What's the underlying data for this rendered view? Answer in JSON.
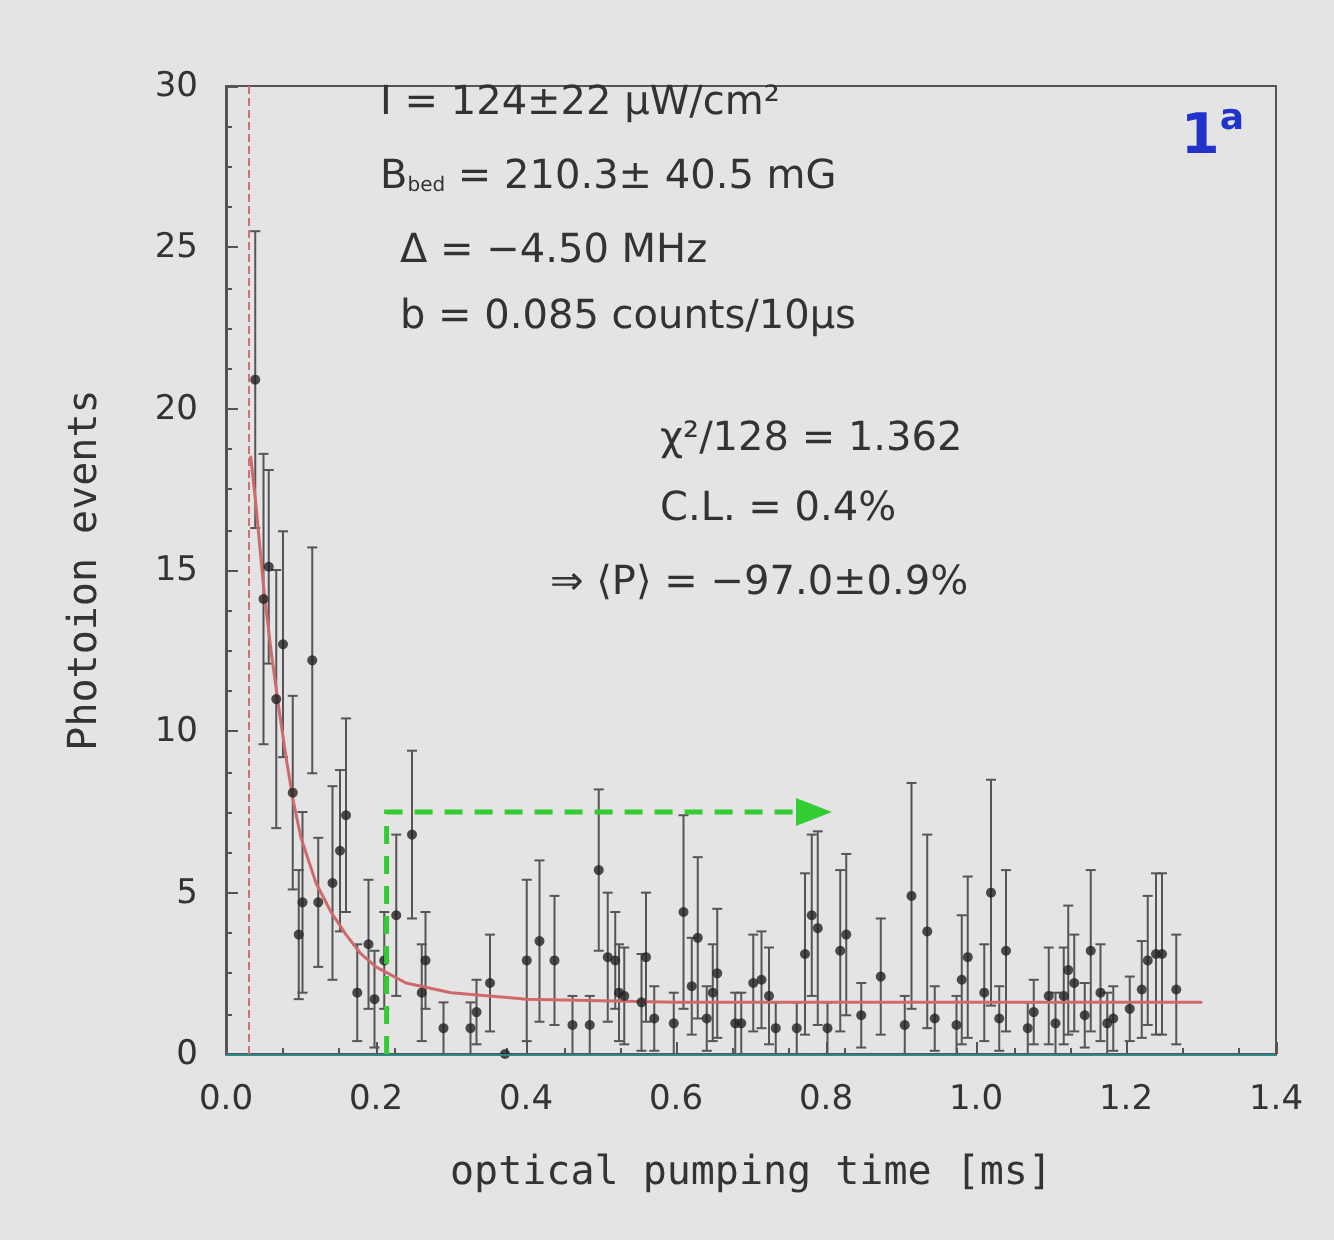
{
  "chart_data": {
    "type": "scatter",
    "title": "1$^{a}$",
    "xlabel": "optical pumping time [ms]",
    "ylabel": "Photoion events",
    "annotations": [
      "I = 124±22 μW/cm²",
      "B$_{bed}$ = 210.3± 40.5 mG",
      "Δ = −4.50 MHz",
      "b = 0.085 counts/10μs",
      "χ²/128 = 1.362",
      "C.L. = 0.4%",
      "⇒ ⟨P⟩ = −97.0±0.9%"
    ],
    "xlim": [
      0,
      1.4
    ],
    "xticks": [
      {
        "value": 0,
        "label": "0.0"
      },
      0.2,
      0.4,
      0.6,
      0.8,
      {
        "value": 1,
        "label": "1.0"
      },
      1.2,
      1.4
    ],
    "ylim": [
      0,
      30
    ],
    "yticks": [
      0,
      5,
      10,
      15,
      20,
      25,
      30
    ],
    "grid": false,
    "series": [
      {
        "color": "#222222",
        "marker": "circle",
        "x": [
          0.039,
          0.05,
          0.057,
          0.067,
          0.076,
          0.089,
          0.097,
          0.102,
          0.115,
          0.123,
          0.142,
          0.152,
          0.16,
          0.175,
          0.19,
          0.198,
          0.211,
          0.227,
          0.248,
          0.261,
          0.266,
          0.29,
          0.326,
          0.334,
          0.352,
          0.372,
          0.401,
          0.418,
          0.438,
          0.462,
          0.485,
          0.497,
          0.509,
          0.519,
          0.524,
          0.531,
          0.554,
          0.56,
          0.571,
          0.597,
          0.61,
          0.621,
          0.629,
          0.641,
          0.649,
          0.655,
          0.679,
          0.687,
          0.703,
          0.714,
          0.724,
          0.733,
          0.761,
          0.772,
          0.781,
          0.789,
          0.802,
          0.819,
          0.827,
          0.847,
          0.873,
          0.905,
          0.914,
          0.935,
          0.945,
          0.974,
          0.981,
          0.989,
          1.011,
          1.02,
          1.031,
          1.04,
          1.069,
          1.077,
          1.097,
          1.106,
          1.117,
          1.123,
          1.131,
          1.145,
          1.153,
          1.166,
          1.175,
          1.183,
          1.205,
          1.221,
          1.229,
          1.24,
          1.248,
          1.267
        ],
        "values": [
          20.9,
          14.1,
          15.1,
          11.0,
          12.7,
          8.1,
          3.7,
          4.7,
          12.2,
          4.7,
          5.3,
          6.3,
          7.4,
          1.9,
          3.4,
          1.7,
          2.9,
          4.3,
          6.8,
          1.9,
          2.9,
          0.8,
          0.8,
          1.3,
          2.2,
          0,
          2.9,
          3.5,
          2.9,
          0.9,
          0.9,
          5.7,
          3.0,
          2.9,
          1.9,
          1.8,
          1.6,
          3.0,
          1.1,
          0.95,
          4.4,
          2.1,
          3.6,
          1.1,
          1.9,
          2.5,
          0.95,
          0.95,
          2.2,
          2.3,
          1.8,
          0.8,
          0.8,
          3.1,
          4.3,
          3.9,
          0.8,
          3.2,
          3.7,
          1.2,
          2.4,
          0.9,
          4.9,
          3.8,
          1.1,
          0.9,
          2.3,
          3.0,
          1.9,
          5.0,
          1.1,
          3.2,
          0.8,
          1.3,
          1.8,
          0.95,
          1.8,
          2.6,
          2.2,
          1.2,
          3.2,
          1.9,
          0.95,
          1.1,
          1.4,
          2.0,
          2.9,
          3.1,
          3.1,
          2.0
        ],
        "errors": [
          4.6,
          4.5,
          3,
          4,
          3.5,
          3,
          2,
          2.8,
          3.5,
          2,
          3,
          2.5,
          3,
          1.5,
          2,
          1.5,
          1.5,
          2.5,
          2.6,
          1.5,
          1.5,
          0.8,
          0.8,
          1,
          1.5,
          null,
          2.5,
          2.5,
          2,
          0.9,
          0.9,
          2.5,
          2,
          1.5,
          1.5,
          1.5,
          1.5,
          2,
          1,
          0.95,
          3,
          1.5,
          2.5,
          1,
          1.5,
          2,
          0.95,
          0.95,
          1.5,
          1.5,
          1.5,
          0.8,
          0.8,
          2.5,
          2.5,
          3,
          0.8,
          2.5,
          2.5,
          1,
          1.8,
          0.9,
          3.5,
          3,
          1,
          0.9,
          2,
          2.5,
          1.5,
          3.5,
          1,
          2.5,
          0.8,
          1,
          1.5,
          0.95,
          1.5,
          2,
          1.5,
          1,
          2.5,
          1.5,
          0.95,
          1,
          1,
          1.5,
          2,
          2.5,
          2.5,
          1.7
        ]
      },
      {
        "type": "line",
        "color": "#d06a6a",
        "marker": "none",
        "line_style": "solid",
        "x": [
          0.033,
          0.04,
          0.05,
          0.06,
          0.07,
          0.08,
          0.09,
          0.1,
          0.12,
          0.14,
          0.16,
          0.18,
          0.2,
          0.24,
          0.3,
          0.4,
          0.6,
          0.8,
          1.0,
          1.2,
          1.3
        ],
        "values": [
          18.5,
          17,
          14.5,
          12.5,
          10.8,
          9.2,
          7.8,
          6.7,
          5.3,
          4.4,
          3.7,
          3.1,
          2.7,
          2.2,
          1.9,
          1.7,
          1.6,
          1.6,
          1.6,
          1.6,
          1.6
        ]
      }
    ],
    "ref_lines": [
      {
        "axis": "x",
        "value": 0.033,
        "color": "#d07070",
        "line_style": "dashed"
      },
      {
        "axis": "y",
        "value": 0,
        "color": "#2a8a8a",
        "line_style": "solid"
      }
    ]
  }
}
